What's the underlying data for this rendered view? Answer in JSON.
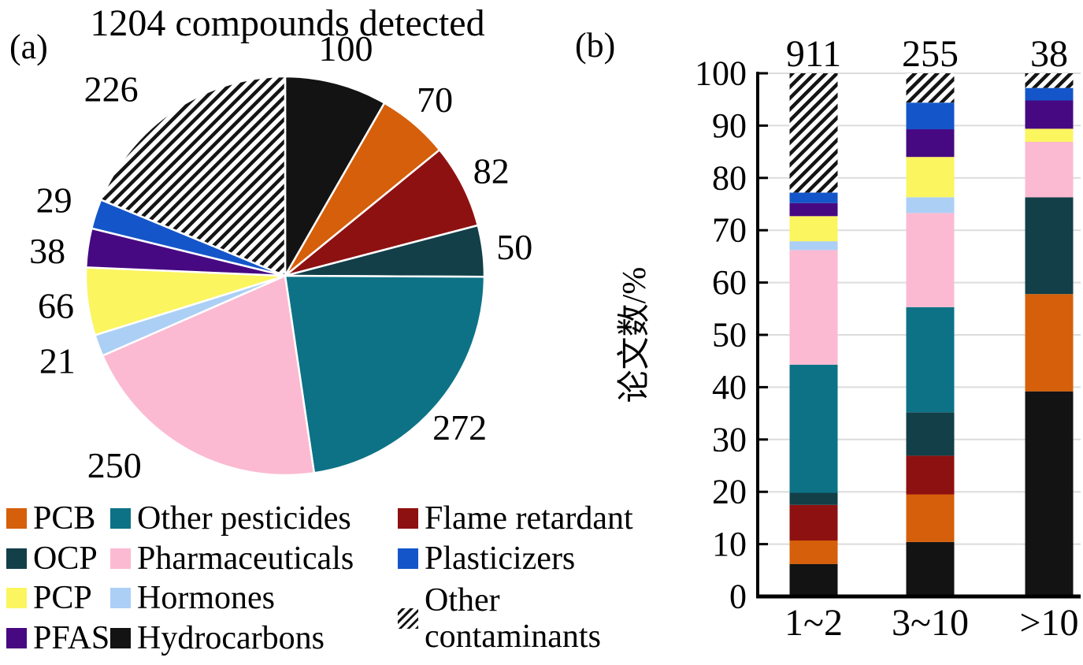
{
  "figure": {
    "panel_a_label": "(a)",
    "panel_b_label": "(b)"
  },
  "chart_data": [
    {
      "id": "pie-compounds",
      "type": "pie",
      "title": "1204 compounds detected",
      "total": 1204,
      "start_angle_deg": 0,
      "direction": "clockwise",
      "slices": [
        {
          "label": "Hydrocarbons",
          "value": 100,
          "color": "#131313"
        },
        {
          "label": "PCB",
          "value": 70,
          "color": "#d55f0a"
        },
        {
          "label": "Flame retardant",
          "value": 82,
          "color": "#8e1111"
        },
        {
          "label": "OCP",
          "value": 50,
          "color": "#123f48"
        },
        {
          "label": "Other pesticides",
          "value": 272,
          "color": "#0d7286"
        },
        {
          "label": "Pharmaceuticals",
          "value": 250,
          "color": "#fbbad2"
        },
        {
          "label": "Hormones",
          "value": 21,
          "color": "#accff5"
        },
        {
          "label": "PCP",
          "value": 66,
          "color": "#fbf55f"
        },
        {
          "label": "PFAS",
          "value": 38,
          "color": "#470982"
        },
        {
          "label": "Plasticizers",
          "value": 29,
          "color": "#1456c9"
        },
        {
          "label": "Other contaminants",
          "value": 226,
          "color": "hatch"
        }
      ]
    },
    {
      "id": "stacked-bars-papers",
      "type": "bar",
      "stacked": true,
      "grid": true,
      "ylabel": "论文数/%",
      "ylim": [
        0,
        100
      ],
      "yticks": [
        0,
        10,
        20,
        30,
        40,
        50,
        60,
        70,
        80,
        90,
        100
      ],
      "categories": [
        "1~2",
        "3~10",
        ">10"
      ],
      "bar_totals": [
        "911",
        "255",
        "38"
      ],
      "series": [
        {
          "name": "Hydrocarbons",
          "color": "#131313",
          "values": [
            6.2,
            10.4,
            39.2
          ]
        },
        {
          "name": "PCB",
          "color": "#d55f0a",
          "values": [
            4.5,
            9.1,
            18.6
          ]
        },
        {
          "name": "Flame retardant",
          "color": "#8e1111",
          "values": [
            6.8,
            7.4,
            0
          ]
        },
        {
          "name": "OCP",
          "color": "#123f48",
          "values": [
            2.3,
            8.3,
            18.5
          ]
        },
        {
          "name": "Other pesticides",
          "color": "#0d7286",
          "values": [
            24.5,
            20.1,
            0
          ]
        },
        {
          "name": "Pharmaceuticals",
          "color": "#fbbad2",
          "values": [
            21.9,
            18.0,
            10.6
          ]
        },
        {
          "name": "Hormones",
          "color": "#accff5",
          "values": [
            1.7,
            3.0,
            0
          ]
        },
        {
          "name": "PCP",
          "color": "#fbf55f",
          "values": [
            4.8,
            7.7,
            2.5
          ]
        },
        {
          "name": "PFAS",
          "color": "#470982",
          "values": [
            2.5,
            5.3,
            5.4
          ]
        },
        {
          "name": "Plasticizers",
          "color": "#1456c9",
          "values": [
            2.0,
            5.1,
            2.4
          ]
        },
        {
          "name": "Other contaminants",
          "color": "hatch",
          "values": [
            22.8,
            5.6,
            2.8
          ]
        }
      ]
    }
  ],
  "legend": {
    "columns": [
      [
        {
          "label": "PCB",
          "color": "#d55f0a"
        },
        {
          "label": "OCP",
          "color": "#123f48"
        },
        {
          "label": "PCP",
          "color": "#fbf55f"
        },
        {
          "label": "PFAS",
          "color": "#470982"
        }
      ],
      [
        {
          "label": "Other pesticides",
          "color": "#0d7286"
        },
        {
          "label": "Pharmaceuticals",
          "color": "#fbbad2"
        },
        {
          "label": "Hormones",
          "color": "#accff5"
        },
        {
          "label": "Hydrocarbons",
          "color": "#131313"
        }
      ],
      [
        {
          "label": "Flame retardant",
          "color": "#8e1111"
        },
        {
          "label": "Plasticizers",
          "color": "#1456c9"
        },
        {
          "label": "Other contaminants",
          "color": "hatch",
          "lines": [
            "Other",
            "contaminants"
          ]
        }
      ]
    ]
  }
}
